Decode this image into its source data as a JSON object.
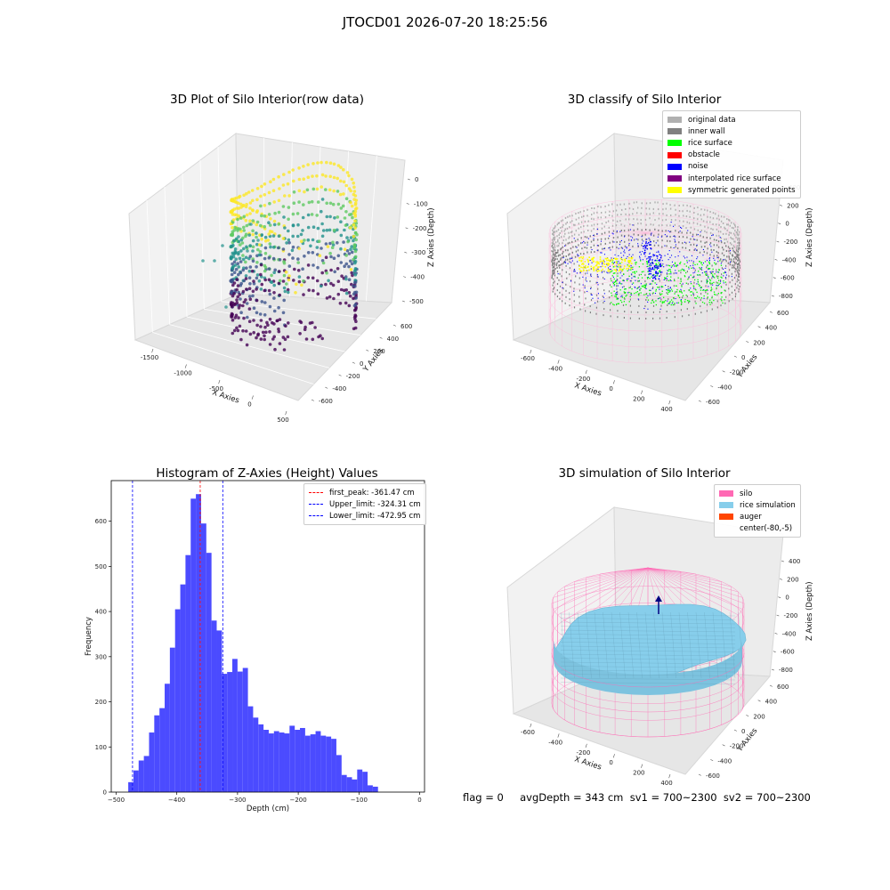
{
  "suptitle": "JTOCD01 2026-07-20 18:25:56",
  "footer": "flag = 0     avgDepth = 343 cm  sv1 = 700~2300  sv2 = 700~2300",
  "colors": {
    "viridis": [
      "#440154",
      "#3b528b",
      "#21918c",
      "#5ec962",
      "#fde725"
    ],
    "original": "#b0b0b0",
    "inner_wall": "#808080",
    "rice_surface": "#00ff00",
    "obstacle": "#ff0000",
    "noise": "#0000ff",
    "interpolated": "#800080",
    "symmetric": "#ffff00",
    "silo": "#ff69b4",
    "rice_sim": "#87ceeb",
    "auger": "#ff4500",
    "hist_bar": "#4b4bff",
    "peak_line": "#ff0000",
    "limit_line": "#0000ff"
  },
  "chart_data": [
    {
      "type": "scatter",
      "subtype": "3d",
      "title": "3D Plot of Silo Interior(row data)",
      "xlabel": "X Axies",
      "ylabel": "Y Axies",
      "zlabel": "Z Axies (Depth)",
      "xticks": [
        "-1500",
        "-1000",
        "-500",
        "0",
        "500"
      ],
      "yticks": [
        "-600",
        "-400",
        "-200",
        "0",
        "200",
        "400",
        "600"
      ],
      "zticks": [
        "0",
        "-100",
        "-200",
        "-300",
        "-400",
        "-500"
      ],
      "xlim": [
        -1700,
        600
      ],
      "ylim": [
        -650,
        650
      ],
      "zlim": [
        -520,
        0
      ],
      "colormap": "viridis"
    },
    {
      "type": "scatter",
      "subtype": "3d",
      "title": "3D classify of Silo Interior",
      "xlabel": "X Axies",
      "ylabel": "Y Axies",
      "zlabel": "Z Axies (Depth)",
      "xticks": [
        "-600",
        "-400",
        "-200",
        "0",
        "200",
        "400"
      ],
      "yticks": [
        "-600",
        "-400",
        "-200",
        "0",
        "200",
        "400",
        "600"
      ],
      "zticks": [
        "400",
        "200",
        "0",
        "-200",
        "-400",
        "-600",
        "-800"
      ],
      "legend": [
        "original data",
        "inner wall",
        "rice surface",
        "obstacle",
        "noise",
        "interpolated rice surface",
        "symmetric generated points"
      ],
      "legend_placement": "upper-right"
    },
    {
      "type": "bar",
      "subtype": "histogram",
      "title": "Histogram of Z-Axies (Height) Values",
      "xlabel": "Depth (cm)",
      "ylabel": "Frequency",
      "xlim": [
        -500,
        0
      ],
      "ylim": [
        0,
        690
      ],
      "xticks": [
        -500,
        -400,
        -300,
        -200,
        -100,
        0
      ],
      "yticks": [
        0,
        100,
        200,
        300,
        400,
        500,
        600
      ],
      "bin_start": -480,
      "bin_width": 8.57,
      "values": [
        22,
        48,
        70,
        80,
        132,
        170,
        186,
        240,
        320,
        405,
        460,
        525,
        650,
        660,
        595,
        530,
        380,
        358,
        262,
        266,
        295,
        267,
        275,
        190,
        165,
        150,
        138,
        130,
        135,
        132,
        130,
        147,
        138,
        142,
        125,
        128,
        135,
        125,
        123,
        118,
        82,
        38,
        33,
        28,
        50,
        45,
        15,
        12
      ],
      "vlines": [
        {
          "label": "first_peak: -361.47 cm",
          "x": -361.47,
          "style": "red-dashed"
        },
        {
          "label": "Upper_limit: -324.31 cm",
          "x": -324.31,
          "style": "blue-dashed"
        },
        {
          "label": "Lower_limit: -472.95 cm",
          "x": -472.95,
          "style": "blue-dashed"
        }
      ],
      "legend_placement": "upper-right"
    },
    {
      "type": "area",
      "subtype": "3d-surface",
      "title": "3D simulation of Silo Interior",
      "xlabel": "X Axies",
      "ylabel": "Y Axies",
      "zlabel": "Z Axies (Depth)",
      "xticks": [
        "-600",
        "-400",
        "-200",
        "0",
        "200",
        "400"
      ],
      "yticks": [
        "-600",
        "-400",
        "-200",
        "0",
        "200",
        "400",
        "600"
      ],
      "zticks": [
        "400",
        "200",
        "0",
        "-200",
        "-400",
        "-600",
        "-800"
      ],
      "legend": [
        "silo",
        "rice simulation",
        "auger",
        "center(-80,-5)"
      ],
      "legend_placement": "upper-right"
    }
  ]
}
